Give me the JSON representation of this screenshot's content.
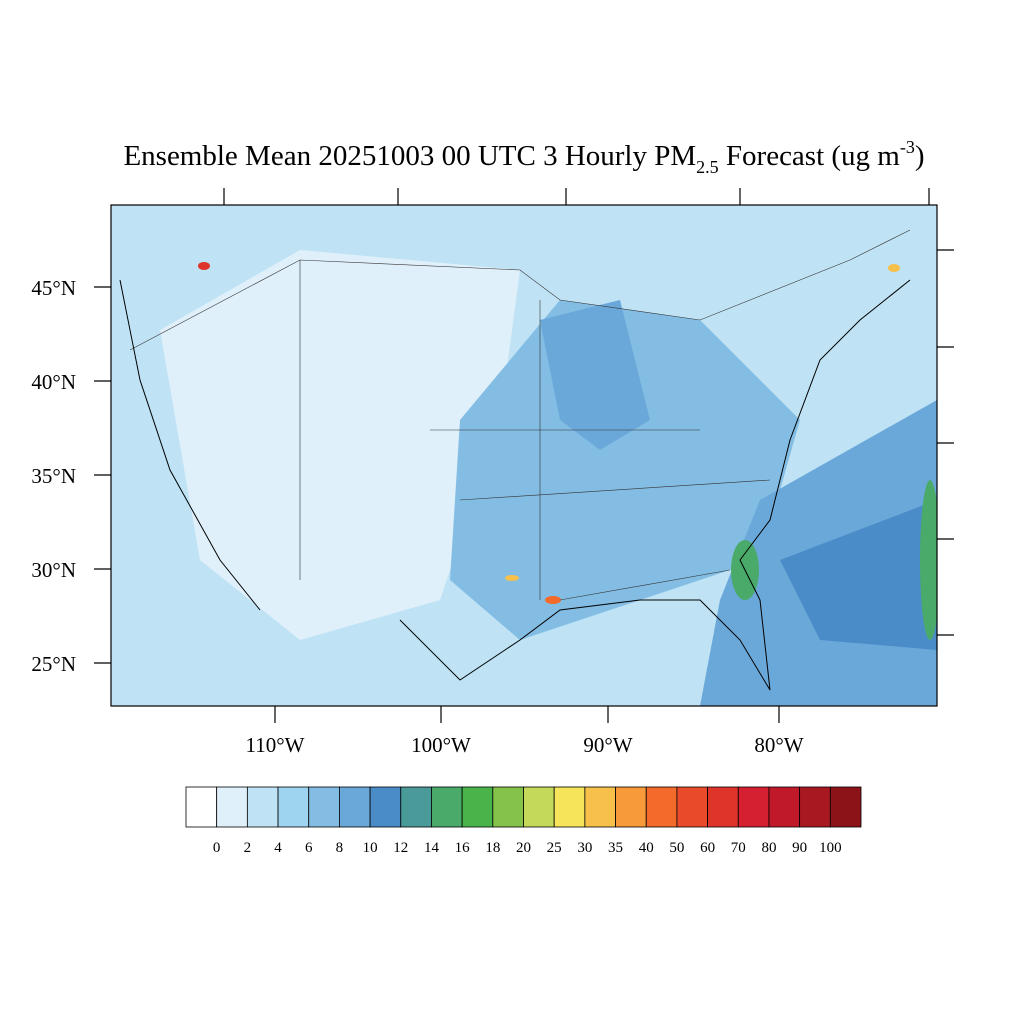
{
  "header": {
    "title": {
      "main": "Ensemble Mean 20251003 00 UTC 3 Hourly PM",
      "sub": "2.5",
      "rest": " Forecast (ug m",
      "sup": "-3",
      "end": ")"
    }
  },
  "map": {
    "lat_labels": [
      "45°N",
      "40°N",
      "35°N",
      "30°N",
      "25°N"
    ],
    "lon_labels": [
      "110°W",
      "100°W",
      "90°W",
      "80°W"
    ]
  },
  "colorbar": {
    "ticks": [
      0,
      2,
      4,
      6,
      8,
      10,
      12,
      14,
      16,
      18,
      20,
      25,
      30,
      35,
      40,
      50,
      60,
      70,
      80,
      90,
      100
    ],
    "colors": [
      "#ffffff",
      "#dff0fa",
      "#bfe3f5",
      "#9fd4f0",
      "#83bde4",
      "#6aa8da",
      "#4a8cc8",
      "#4a9a9a",
      "#4aaa6a",
      "#4ab44a",
      "#84c24a",
      "#c4d85a",
      "#f6e45a",
      "#f6c04a",
      "#f69a3a",
      "#f46a2a",
      "#e84a2a",
      "#de342a",
      "#d42030",
      "#c01a2a",
      "#a81820",
      "#8c1418"
    ]
  }
}
